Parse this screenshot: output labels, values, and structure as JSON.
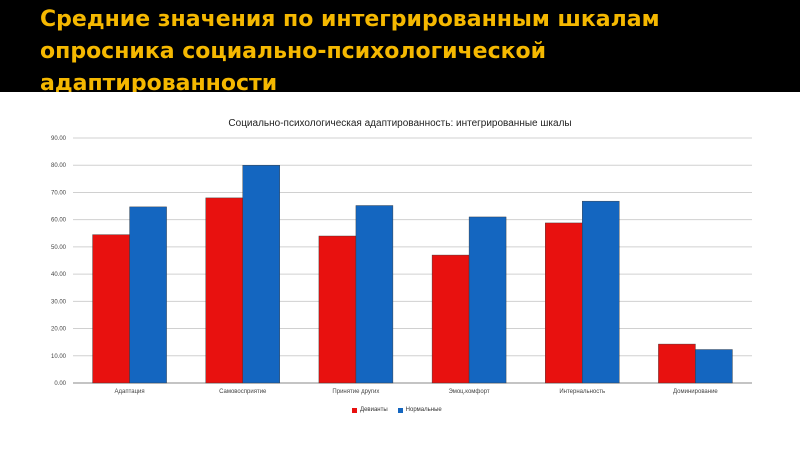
{
  "slide": {
    "title_line1": "Средние значения по интегрированным шкалам",
    "title_line2": "опросника социально-психологической адаптированности"
  },
  "colors": {
    "header_bg": "#000000",
    "title_text": "#f5b800",
    "series_deviant": "#e8110f",
    "series_normal": "#1466c0"
  },
  "chart_data": {
    "type": "bar",
    "title": "Социально-психологическая адаптированность: интегрированные шкалы",
    "categories": [
      "Адаптация",
      "Самовосприятие",
      "Принятие других",
      "Эмоц.комфорт",
      "Интернальность",
      "Доминирование"
    ],
    "series": [
      {
        "name": "Девианты",
        "values": [
          54.5,
          68.0,
          54.0,
          47.0,
          58.8,
          14.3
        ]
      },
      {
        "name": "Нормальные",
        "values": [
          64.7,
          80.0,
          65.2,
          61.0,
          66.8,
          12.3
        ]
      }
    ],
    "ylim": [
      0,
      90
    ],
    "yticks": [
      "0.00",
      "10.00",
      "20.00",
      "30.00",
      "40.00",
      "50.00",
      "60.00",
      "70.00",
      "80.00",
      "90.00"
    ],
    "grid": true,
    "legend_position": "bottom"
  }
}
